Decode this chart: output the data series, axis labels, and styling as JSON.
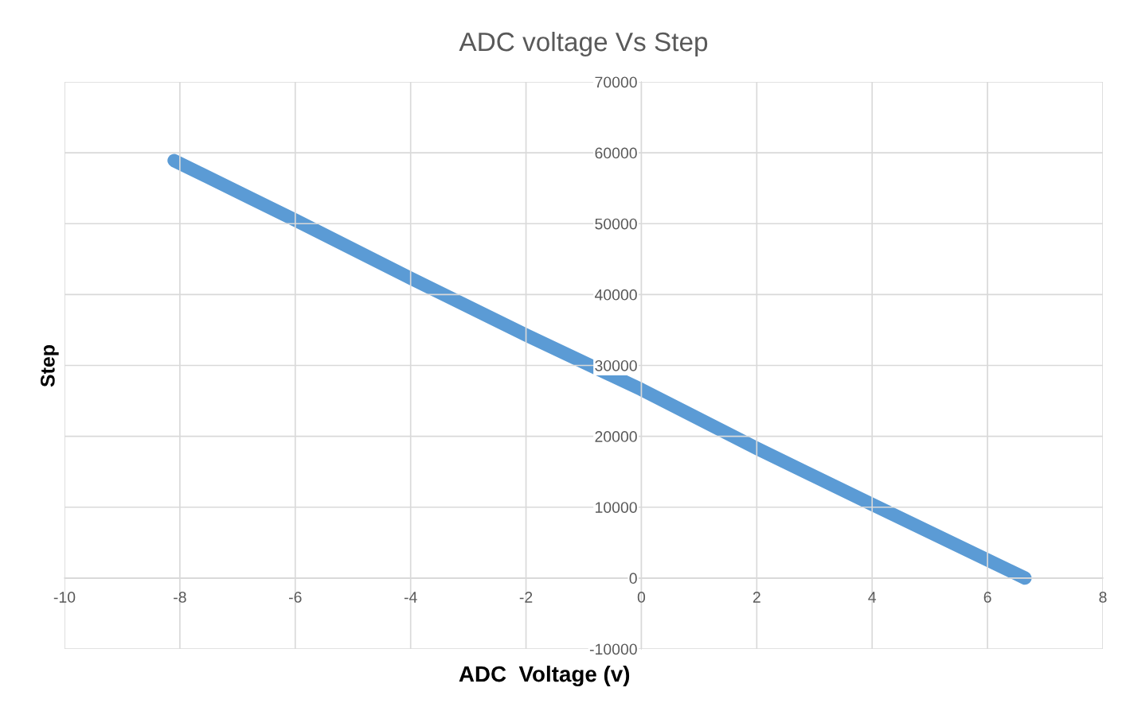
{
  "chart_data": {
    "type": "line",
    "title": "ADC voltage Vs Step",
    "xlabel": "ADC  Voltage (v)",
    "ylabel": "Step",
    "x": [
      -8.1,
      -6,
      -4,
      -2,
      0,
      2,
      4,
      6.65
    ],
    "series": [
      {
        "color": "#5b9bd5",
        "values": [
          58900,
          50500,
          42300,
          34300,
          26600,
          18300,
          10400,
          0
        ]
      }
    ],
    "xlim": [
      -10,
      8
    ],
    "xticks": [
      -10,
      -8,
      -6,
      -4,
      -2,
      0,
      2,
      4,
      6,
      8
    ],
    "ylim": [
      -10000,
      70000
    ],
    "yticks": [
      -10000,
      0,
      10000,
      20000,
      30000,
      40000,
      50000,
      60000,
      70000
    ],
    "grid": true,
    "line_style": "solid"
  }
}
